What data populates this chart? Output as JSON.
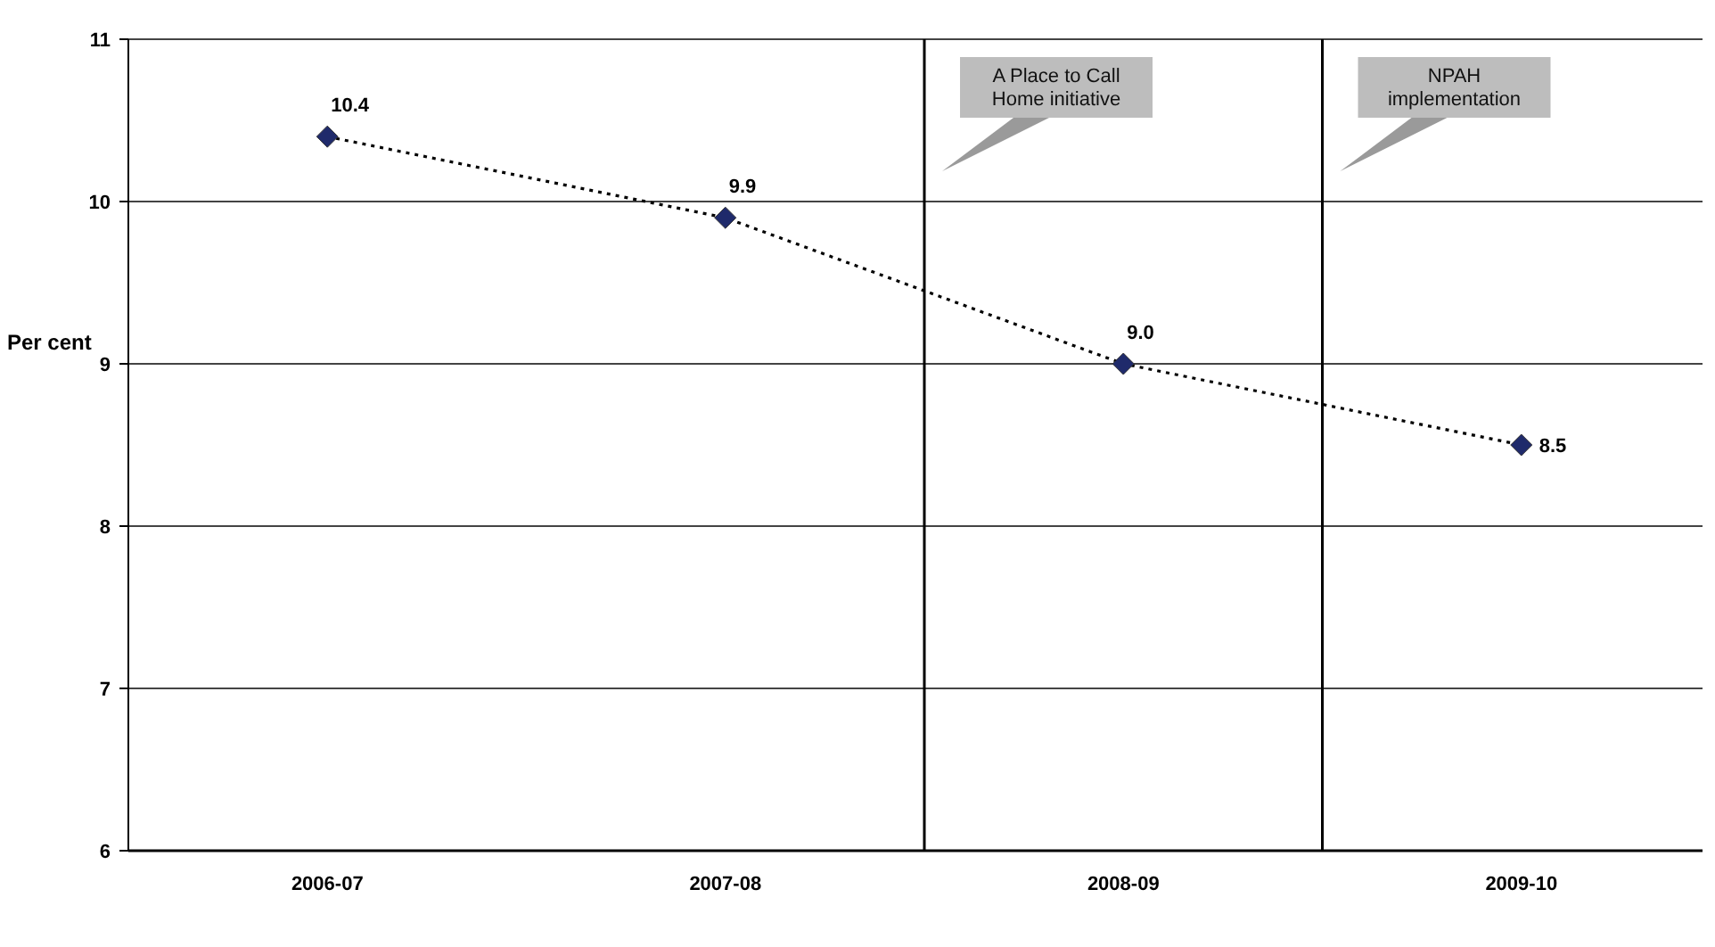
{
  "chart_data": {
    "type": "line",
    "ylabel": "Per cent",
    "categories": [
      "2006-07",
      "2007-08",
      "2008-09",
      "2009-10"
    ],
    "series": [
      {
        "color": "#1f2a6b",
        "values": [
          10.4,
          9.9,
          9.0,
          8.5
        ],
        "value_labels": [
          "10.4",
          "9.9",
          "9.0",
          "8.5"
        ]
      }
    ],
    "ylim": [
      6,
      11
    ],
    "yticks": [
      6,
      7,
      8,
      9,
      10,
      11
    ],
    "grid": "y",
    "marker": "diamond",
    "line_style": "dotted",
    "annotations": [
      "A Place to Call\nHome initiative",
      "NPAH\nimplementation"
    ]
  }
}
